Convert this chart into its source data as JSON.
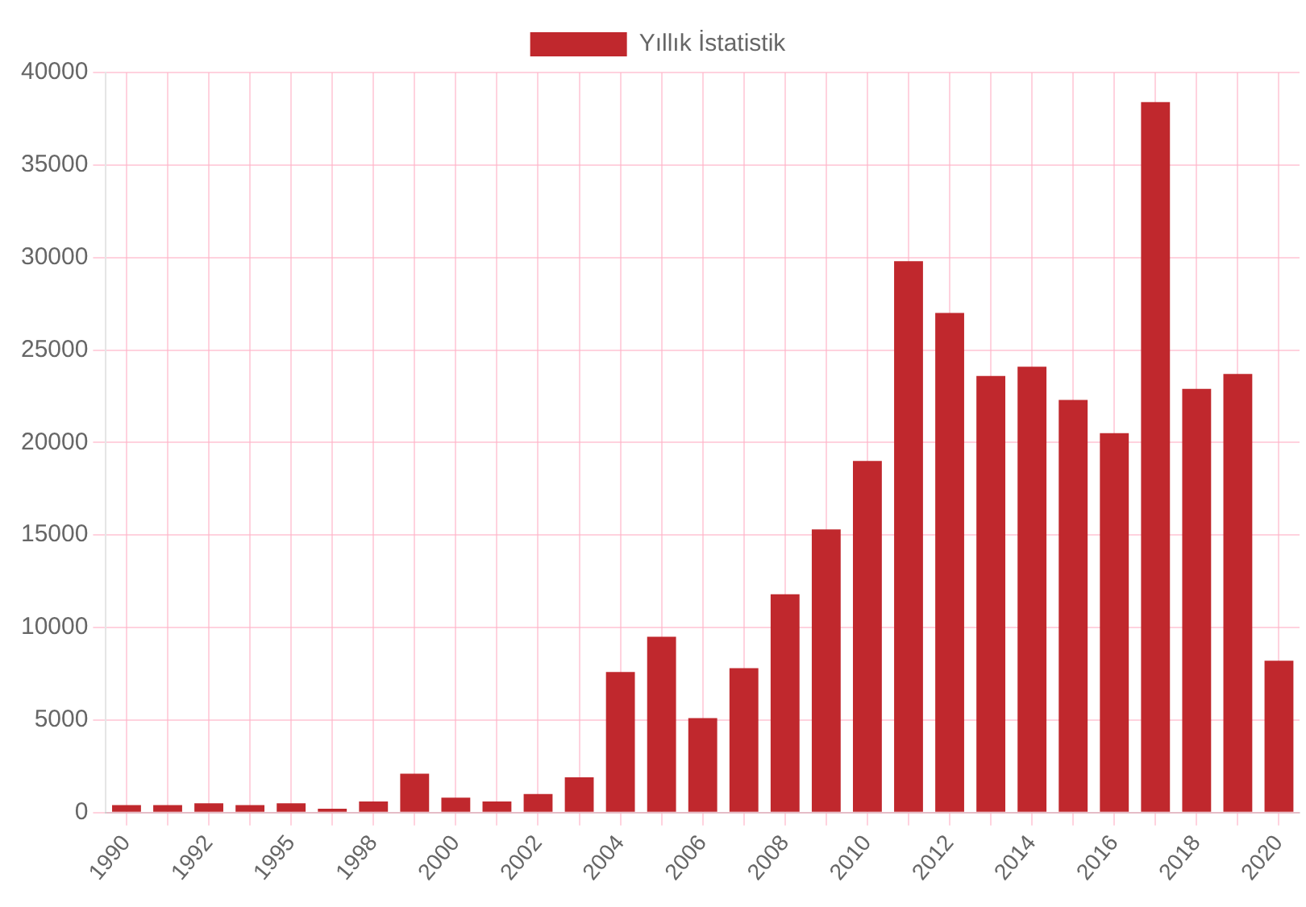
{
  "chart_data": {
    "type": "bar",
    "categories": [
      "1990",
      null,
      "1992",
      null,
      "1995",
      null,
      "1998",
      null,
      "2000",
      null,
      "2002",
      null,
      "2004",
      null,
      "2006",
      null,
      "2008",
      null,
      "2010",
      null,
      "2012",
      null,
      "2014",
      null,
      "2016",
      null,
      "2018",
      null,
      "2020"
    ],
    "series": [
      {
        "name": "Yıllık İstatistik",
        "color": "#c0282d",
        "values": [
          400,
          400,
          500,
          400,
          500,
          200,
          600,
          2100,
          800,
          600,
          1000,
          1900,
          7600,
          9500,
          5100,
          7800,
          11800,
          15300,
          19000,
          29800,
          27000,
          23600,
          24100,
          22300,
          20500,
          38400,
          22900,
          23700,
          8200
        ]
      }
    ],
    "ylim": [
      0,
      40000
    ],
    "yticks": [
      0,
      5000,
      10000,
      15000,
      20000,
      25000,
      30000,
      35000,
      40000
    ],
    "grid": true,
    "legend": "top"
  }
}
